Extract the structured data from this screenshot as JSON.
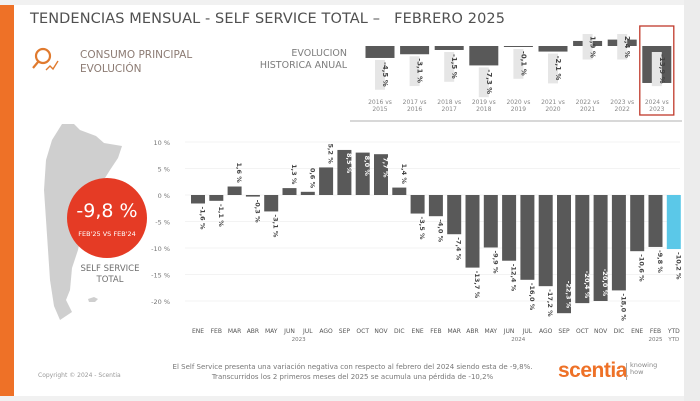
{
  "header": {
    "title": "TENDENCIAS MENSUAL - SELF SERVICE TOTAL –   FEBRERO 2025",
    "subtitle_line1": "CONSUMO PRINCIPAL",
    "subtitle_line2": "EVOLUCIÓN",
    "annual_label_line1": "EVOLUCION",
    "annual_label_line2": "HISTORICA ANUAL"
  },
  "kpi": {
    "value": "-9,8 %",
    "comparison": "FEB'25 VS FEB'24",
    "label_line1": "SELF SERVICE",
    "label_line2": "TOTAL",
    "color": "#e53b25"
  },
  "footer": {
    "copyright": "Copyright © 2024 - Scentia",
    "note_line1": "El Self Service presenta una variación negativa con respecto al febrero del 2024 siendo esta de -9,8%.",
    "note_line2": "Transcurridos los 2 primeros meses del 2025 se acumula una pérdida de -10,2%",
    "logo": "scentia",
    "tagline_line1": "knowing",
    "tagline_line2": "how"
  },
  "chart_data": [
    {
      "type": "bar",
      "title": "EVOLUCION HISTORICA ANUAL",
      "categories": [
        "2016 vs 2015",
        "2017 vs 2016",
        "2018 vs 2017",
        "2019 vs 2018",
        "2020 vs 2019",
        "2021 vs 2020",
        "2022 vs 2021",
        "2023 vs 2022",
        "2024 vs 2023"
      ],
      "values": [
        -4.5,
        -3.1,
        -1.5,
        -7.3,
        -0.1,
        -2.1,
        1.9,
        2.4,
        -13.9
      ],
      "labels": [
        "-4,5 %",
        "-3,1 %",
        "-1,5 %",
        "-7,3 %",
        "-0,1 %",
        "-2,1 %",
        "1,9 %",
        "2,4 %",
        "-13,9 %"
      ],
      "highlighted": "2024 vs 2023",
      "highlight_color": "#c0392b",
      "bar_color": "#595959"
    },
    {
      "type": "bar",
      "grid": true,
      "y_ticks": [
        "10 %",
        "5 %",
        "0 %",
        "-5 %",
        "-10 %",
        "-15 %",
        "-20 %"
      ],
      "ylim": [
        -22.5,
        10
      ],
      "categories": [
        "ENE",
        "FEB",
        "MAR",
        "ABR",
        "MAY",
        "JUN",
        "JUL",
        "AGO",
        "SEP",
        "OCT",
        "NOV",
        "DIC",
        "ENE",
        "FEB",
        "MAR",
        "ABR",
        "MAY",
        "JUN",
        "JUL",
        "AGO",
        "SEP",
        "OCT",
        "NOV",
        "DIC",
        "ENE",
        "FEB",
        "YTD"
      ],
      "groups": [
        {
          "label": "2023",
          "count": 12
        },
        {
          "label": "2024",
          "count": 12
        },
        {
          "label": "2025",
          "count": 2
        },
        {
          "label": "YTD",
          "count": 1
        }
      ],
      "values": [
        -1.6,
        -1.1,
        1.6,
        -0.3,
        -3.1,
        1.3,
        0.6,
        5.2,
        8.5,
        8.0,
        7.7,
        1.4,
        -3.5,
        -4.0,
        -7.4,
        -13.7,
        -9.9,
        -12.4,
        -16.0,
        -17.2,
        -22.3,
        -20.4,
        -20.0,
        -18.0,
        -10.6,
        -9.8,
        -10.2
      ],
      "labels": [
        "-1,6 %",
        "-1,1 %",
        "1,6 %",
        "-0,3 %",
        "-3,1 %",
        "1,3 %",
        "0,6 %",
        "5,2 %",
        "8,5 %",
        "8,0 %",
        "7,7 %",
        "1,4 %",
        "-3,5 %",
        "-4,0 %",
        "-7,4 %",
        "-13,7 %",
        "-9,9 %",
        "-12,4 %",
        "-16,0 %",
        "-17,2 %",
        "-22,3 %",
        "-20,4 %",
        "-20,0 %",
        "-18,0 %",
        "-10,6 %",
        "-9,8 %",
        "-10,2 %"
      ],
      "bar_color": "#595959",
      "ytd_color": "#5bc8e8"
    }
  ]
}
